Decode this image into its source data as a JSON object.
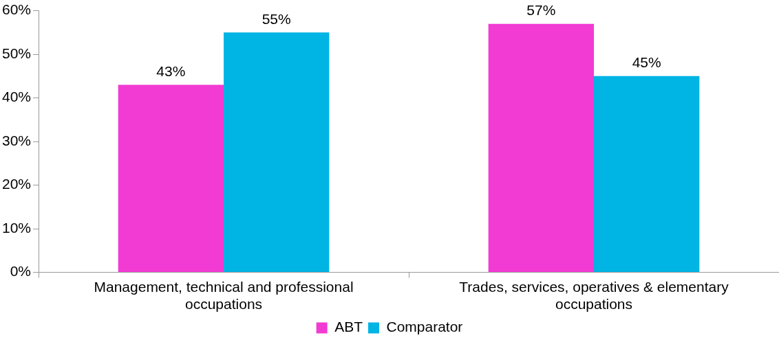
{
  "chart_data": {
    "type": "bar",
    "categories": [
      "Management, technical and professional occupations",
      "Trades, services, operatives & elementary occupations"
    ],
    "series": [
      {
        "name": "ABT",
        "color": "#f23bd3",
        "values": [
          43,
          57
        ],
        "value_labels": [
          "43%",
          "57%"
        ]
      },
      {
        "name": "Comparator",
        "color": "#00b4e4",
        "values": [
          55,
          45
        ],
        "value_labels": [
          "55%",
          "45%"
        ]
      }
    ],
    "ylim": [
      0,
      60
    ],
    "yticks": [
      {
        "value": 0,
        "label": "0%"
      },
      {
        "value": 10,
        "label": "10%"
      },
      {
        "value": 20,
        "label": "20%"
      },
      {
        "value": 30,
        "label": "30%"
      },
      {
        "value": 40,
        "label": "40%"
      },
      {
        "value": 50,
        "label": "50%"
      },
      {
        "value": 60,
        "label": "60%"
      }
    ],
    "grid": false,
    "legend": "bottom"
  }
}
